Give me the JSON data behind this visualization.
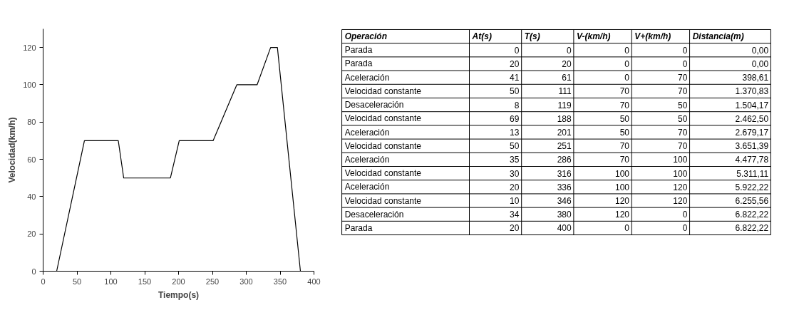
{
  "chart_data": [
    {
      "type": "line",
      "xlabel": "Tiempo(s)",
      "ylabel": "Velocidad(km/h)",
      "x": [
        0,
        20,
        61,
        111,
        119,
        188,
        201,
        251,
        286,
        316,
        336,
        346,
        380,
        400
      ],
      "series": [
        {
          "color": "#000000",
          "values": [
            0,
            0,
            70,
            70,
            50,
            50,
            70,
            70,
            100,
            100,
            120,
            120,
            0,
            0
          ]
        }
      ],
      "xlim": [
        0,
        400
      ],
      "ylim": [
        0,
        130
      ],
      "xticks": [
        0,
        50,
        100,
        150,
        200,
        250,
        300,
        350,
        400
      ],
      "yticks": [
        0,
        20,
        40,
        60,
        80,
        100,
        120
      ],
      "grid": false,
      "marker": "none",
      "line_style": "solid"
    },
    {
      "type": "other",
      "categories": [
        "Operación",
        "At(s)",
        "T(s)",
        "V-(km/h)",
        "V+(km/h)",
        "Distancia(m)"
      ],
      "annotations": [
        "Parada",
        "0",
        "0",
        "0",
        "0",
        "0,00",
        "Parada",
        "20",
        "20",
        "0",
        "0",
        "0,00",
        "Aceleración",
        "41",
        "61",
        "0",
        "70",
        "398,61",
        "Velocidad constante",
        "50",
        "111",
        "70",
        "70",
        "1.370,83",
        "Desaceleración",
        "8",
        "119",
        "70",
        "50",
        "1.504,17",
        "Velocidad constante",
        "69",
        "188",
        "50",
        "50",
        "2.462,50",
        "Aceleración",
        "13",
        "201",
        "50",
        "70",
        "2.679,17",
        "Velocidad constante",
        "50",
        "251",
        "70",
        "70",
        "3.651,39",
        "Aceleración",
        "35",
        "286",
        "70",
        "100",
        "4.477,78",
        "Velocidad constante",
        "30",
        "316",
        "100",
        "100",
        "5.311,11",
        "Aceleración",
        "20",
        "336",
        "100",
        "120",
        "5.922,22",
        "Velocidad constante",
        "10",
        "346",
        "120",
        "120",
        "6.255,56",
        "Desaceleración",
        "34",
        "380",
        "120",
        "0",
        "6.822,22",
        "Parada",
        "20",
        "400",
        "0",
        "0",
        "6.822,22"
      ]
    }
  ]
}
